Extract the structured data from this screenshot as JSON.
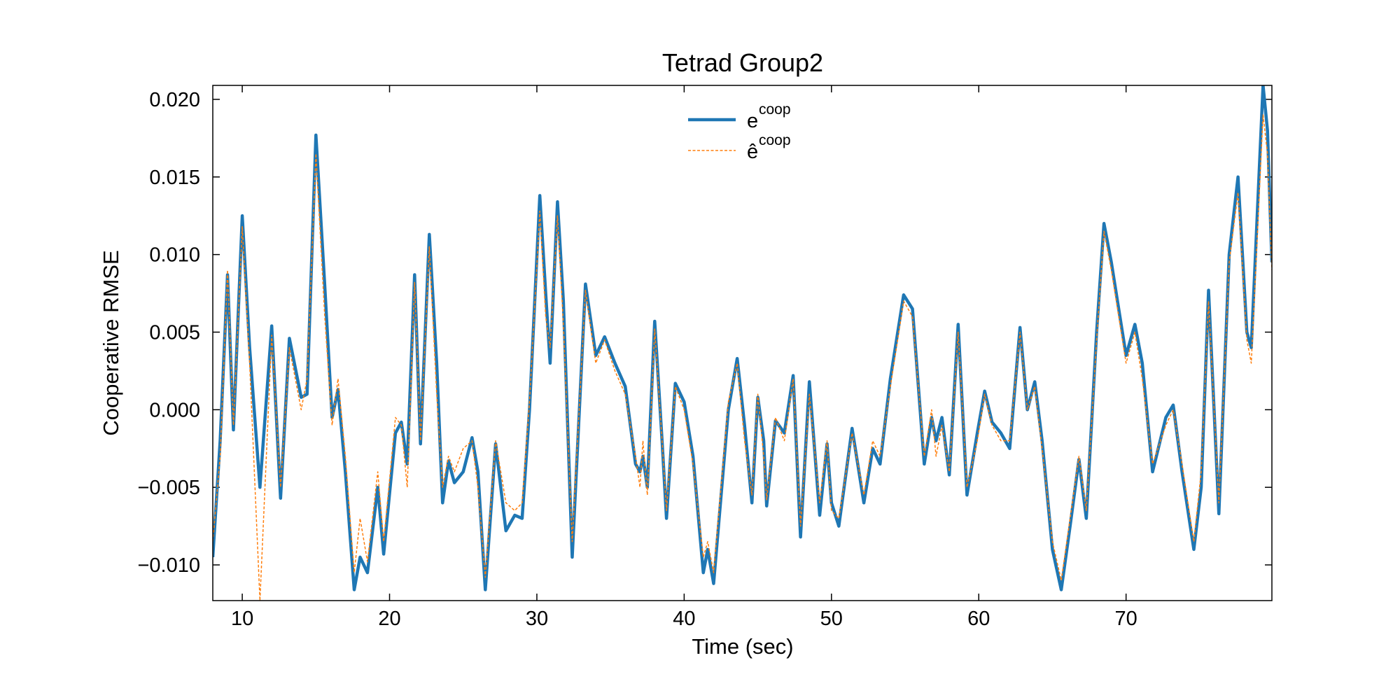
{
  "chart_data": {
    "type": "line",
    "title": "Tetrad Group2",
    "x_label": "Time (sec)",
    "y_label": "Cooperative RMSE",
    "xlim": [
      8,
      79.9
    ],
    "ylim": [
      -0.0123,
      0.0209
    ],
    "xticks": [
      10,
      20,
      30,
      40,
      50,
      60,
      70
    ],
    "yticks": [
      {
        "value": -0.01,
        "label": "−0.010"
      },
      {
        "value": -0.005,
        "label": "−0.005"
      },
      {
        "value": 0,
        "label": "0.000"
      },
      {
        "value": 0.005,
        "label": "0.005"
      },
      {
        "value": 0.01,
        "label": "0.010"
      },
      {
        "value": 0.015,
        "label": "0.015"
      },
      {
        "value": 0.02,
        "label": "0.020"
      }
    ],
    "grid": false,
    "legend": "upper center",
    "x": [
      8.0,
      8.5,
      9.0,
      9.4,
      10.0,
      10.5,
      11.2,
      12.0,
      12.6,
      13.2,
      14.0,
      14.4,
      15.0,
      15.6,
      16.1,
      16.5,
      17.0,
      17.6,
      18.0,
      18.5,
      19.2,
      19.6,
      20.4,
      20.8,
      21.2,
      21.7,
      22.1,
      22.7,
      23.2,
      23.6,
      24.0,
      24.4,
      25.0,
      25.6,
      26.0,
      26.5,
      27.2,
      27.9,
      28.5,
      29.0,
      29.5,
      30.2,
      30.6,
      30.9,
      31.4,
      31.8,
      32.4,
      33.3,
      34.0,
      34.6,
      35.3,
      36.0,
      36.7,
      37.0,
      37.2,
      37.5,
      38.0,
      38.5,
      38.8,
      39.4,
      40.0,
      40.6,
      41.3,
      41.6,
      42.0,
      43.0,
      43.6,
      44.1,
      44.6,
      45.0,
      45.4,
      45.6,
      46.2,
      46.8,
      47.4,
      47.9,
      48.5,
      49.2,
      49.7,
      50.0,
      50.5,
      51.4,
      52.2,
      52.8,
      53.3,
      54.0,
      54.9,
      55.5,
      56.3,
      56.8,
      57.1,
      57.5,
      58.0,
      58.6,
      59.2,
      59.9,
      60.4,
      60.9,
      61.5,
      62.1,
      62.8,
      63.3,
      63.8,
      64.3,
      65.0,
      65.6,
      66.2,
      66.8,
      67.3,
      68.0,
      68.5,
      69.0,
      69.5,
      70.0,
      70.6,
      71.1,
      71.8,
      72.7,
      73.2,
      73.8,
      74.6,
      75.1,
      75.6,
      76.3,
      77.0,
      77.6,
      78.2,
      78.5,
      79.3,
      79.6,
      79.9
    ],
    "series": [
      {
        "name": "e",
        "superscript": "coop",
        "color": "#1f77b4",
        "values": [
          -0.0095,
          -0.002,
          0.0087,
          -0.0013,
          0.0125,
          0.004,
          -0.005,
          0.0054,
          -0.0057,
          0.0046,
          0.0008,
          0.001,
          0.0177,
          0.008,
          -0.0005,
          0.0013,
          -0.004,
          -0.0116,
          -0.0095,
          -0.0105,
          -0.005,
          -0.0093,
          -0.0015,
          -0.0008,
          -0.0035,
          0.0087,
          -0.0022,
          0.0113,
          0.003,
          -0.006,
          -0.0033,
          -0.0047,
          -0.004,
          -0.0018,
          -0.004,
          -0.0116,
          -0.0022,
          -0.0078,
          -0.0068,
          -0.007,
          0.0,
          0.0138,
          0.0075,
          0.003,
          0.0134,
          0.007,
          -0.0095,
          0.0081,
          0.0035,
          0.0047,
          0.003,
          0.0015,
          -0.0035,
          -0.004,
          -0.003,
          -0.005,
          0.0057,
          -0.002,
          -0.007,
          0.0017,
          0.0005,
          -0.003,
          -0.0105,
          -0.009,
          -0.0112,
          0.0,
          0.0033,
          -0.001,
          -0.006,
          0.0008,
          -0.002,
          -0.0062,
          -0.0007,
          -0.0015,
          0.0022,
          -0.0082,
          0.0018,
          -0.0068,
          -0.0022,
          -0.006,
          -0.0075,
          -0.0012,
          -0.006,
          -0.0025,
          -0.0035,
          0.002,
          0.0074,
          0.0065,
          -0.0035,
          -0.0005,
          -0.002,
          -0.0005,
          -0.0042,
          0.0055,
          -0.0055,
          -0.0015,
          0.0012,
          -0.0008,
          -0.0015,
          -0.0025,
          0.0053,
          0.0,
          0.0018,
          -0.002,
          -0.009,
          -0.0116,
          -0.0075,
          -0.0032,
          -0.007,
          0.005,
          0.012,
          0.0095,
          0.0065,
          0.0035,
          0.0055,
          0.003,
          -0.004,
          -0.0005,
          0.0003,
          -0.004,
          -0.009,
          -0.005,
          0.0077,
          -0.0067,
          0.01,
          0.015,
          0.005,
          0.004,
          0.0209,
          0.018,
          0.0095
        ]
      },
      {
        "name": "ê",
        "superscript": "coop",
        "color": "#ff7f0e",
        "values": [
          -0.0085,
          -0.003,
          0.009,
          -0.001,
          0.0118,
          0.003,
          -0.0123,
          0.0048,
          -0.005,
          0.004,
          0.0,
          0.002,
          0.0165,
          0.006,
          -0.001,
          0.002,
          -0.003,
          -0.0105,
          -0.007,
          -0.0098,
          -0.004,
          -0.0085,
          -0.0005,
          -0.001,
          -0.005,
          0.0082,
          -0.002,
          0.0105,
          0.001,
          -0.005,
          -0.003,
          -0.004,
          -0.0025,
          -0.002,
          -0.005,
          -0.0108,
          -0.002,
          -0.006,
          -0.0065,
          -0.006,
          0.0005,
          0.0128,
          0.006,
          0.004,
          0.0125,
          0.0055,
          -0.0085,
          0.0077,
          0.003,
          0.0045,
          0.0025,
          0.001,
          -0.003,
          -0.005,
          -0.002,
          -0.0055,
          0.0052,
          -0.002,
          -0.0065,
          0.0015,
          0.0,
          -0.0035,
          -0.0095,
          -0.0085,
          -0.0105,
          0.0005,
          0.003,
          -0.002,
          -0.0055,
          0.001,
          -0.003,
          -0.0058,
          -0.0005,
          -0.002,
          0.002,
          -0.0075,
          0.001,
          -0.006,
          -0.002,
          -0.0065,
          -0.007,
          -0.0015,
          -0.0055,
          -0.002,
          -0.003,
          0.0015,
          0.007,
          0.006,
          -0.003,
          0.0,
          -0.003,
          -0.001,
          -0.004,
          0.005,
          -0.005,
          -0.002,
          0.001,
          -0.001,
          -0.002,
          -0.002,
          0.005,
          0.0,
          0.0015,
          -0.0025,
          -0.0085,
          -0.011,
          -0.007,
          -0.003,
          -0.0065,
          0.0045,
          0.0115,
          0.009,
          0.006,
          0.003,
          0.005,
          0.002,
          -0.0035,
          -0.001,
          0.0,
          -0.0035,
          -0.0085,
          -0.004,
          0.007,
          -0.006,
          0.0095,
          0.014,
          0.0045,
          0.003,
          0.019,
          0.0165,
          0.009
        ]
      }
    ]
  }
}
